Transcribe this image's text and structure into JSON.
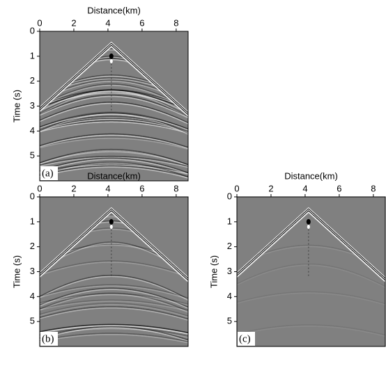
{
  "chart_data": [
    {
      "type": "image",
      "xlabel": "Distance(km)",
      "ylabel": "Time (s)",
      "panel_label": "(a)",
      "xlim": [
        0,
        8.7
      ],
      "ylim": [
        0,
        6
      ],
      "xticks": [
        0,
        2,
        4,
        6,
        8
      ],
      "yticks": [
        0,
        1,
        2,
        3,
        4,
        5
      ]
    },
    {
      "type": "image",
      "xlabel": "Distance(km)",
      "ylabel": "Time (s)",
      "panel_label": "(b)",
      "xlim": [
        0,
        8.7
      ],
      "ylim": [
        0,
        6
      ],
      "xticks": [
        0,
        2,
        4,
        6,
        8
      ],
      "yticks": [
        0,
        1,
        2,
        3,
        4,
        5
      ]
    },
    {
      "type": "image",
      "xlabel": "Distance(km)",
      "ylabel": "Time (s)",
      "panel_label": "(c)",
      "xlim": [
        0,
        8.7
      ],
      "ylim": [
        0,
        6
      ],
      "xticks": [
        0,
        2,
        4,
        6,
        8
      ],
      "yticks": [
        0,
        1,
        2,
        3,
        4,
        5
      ]
    }
  ]
}
